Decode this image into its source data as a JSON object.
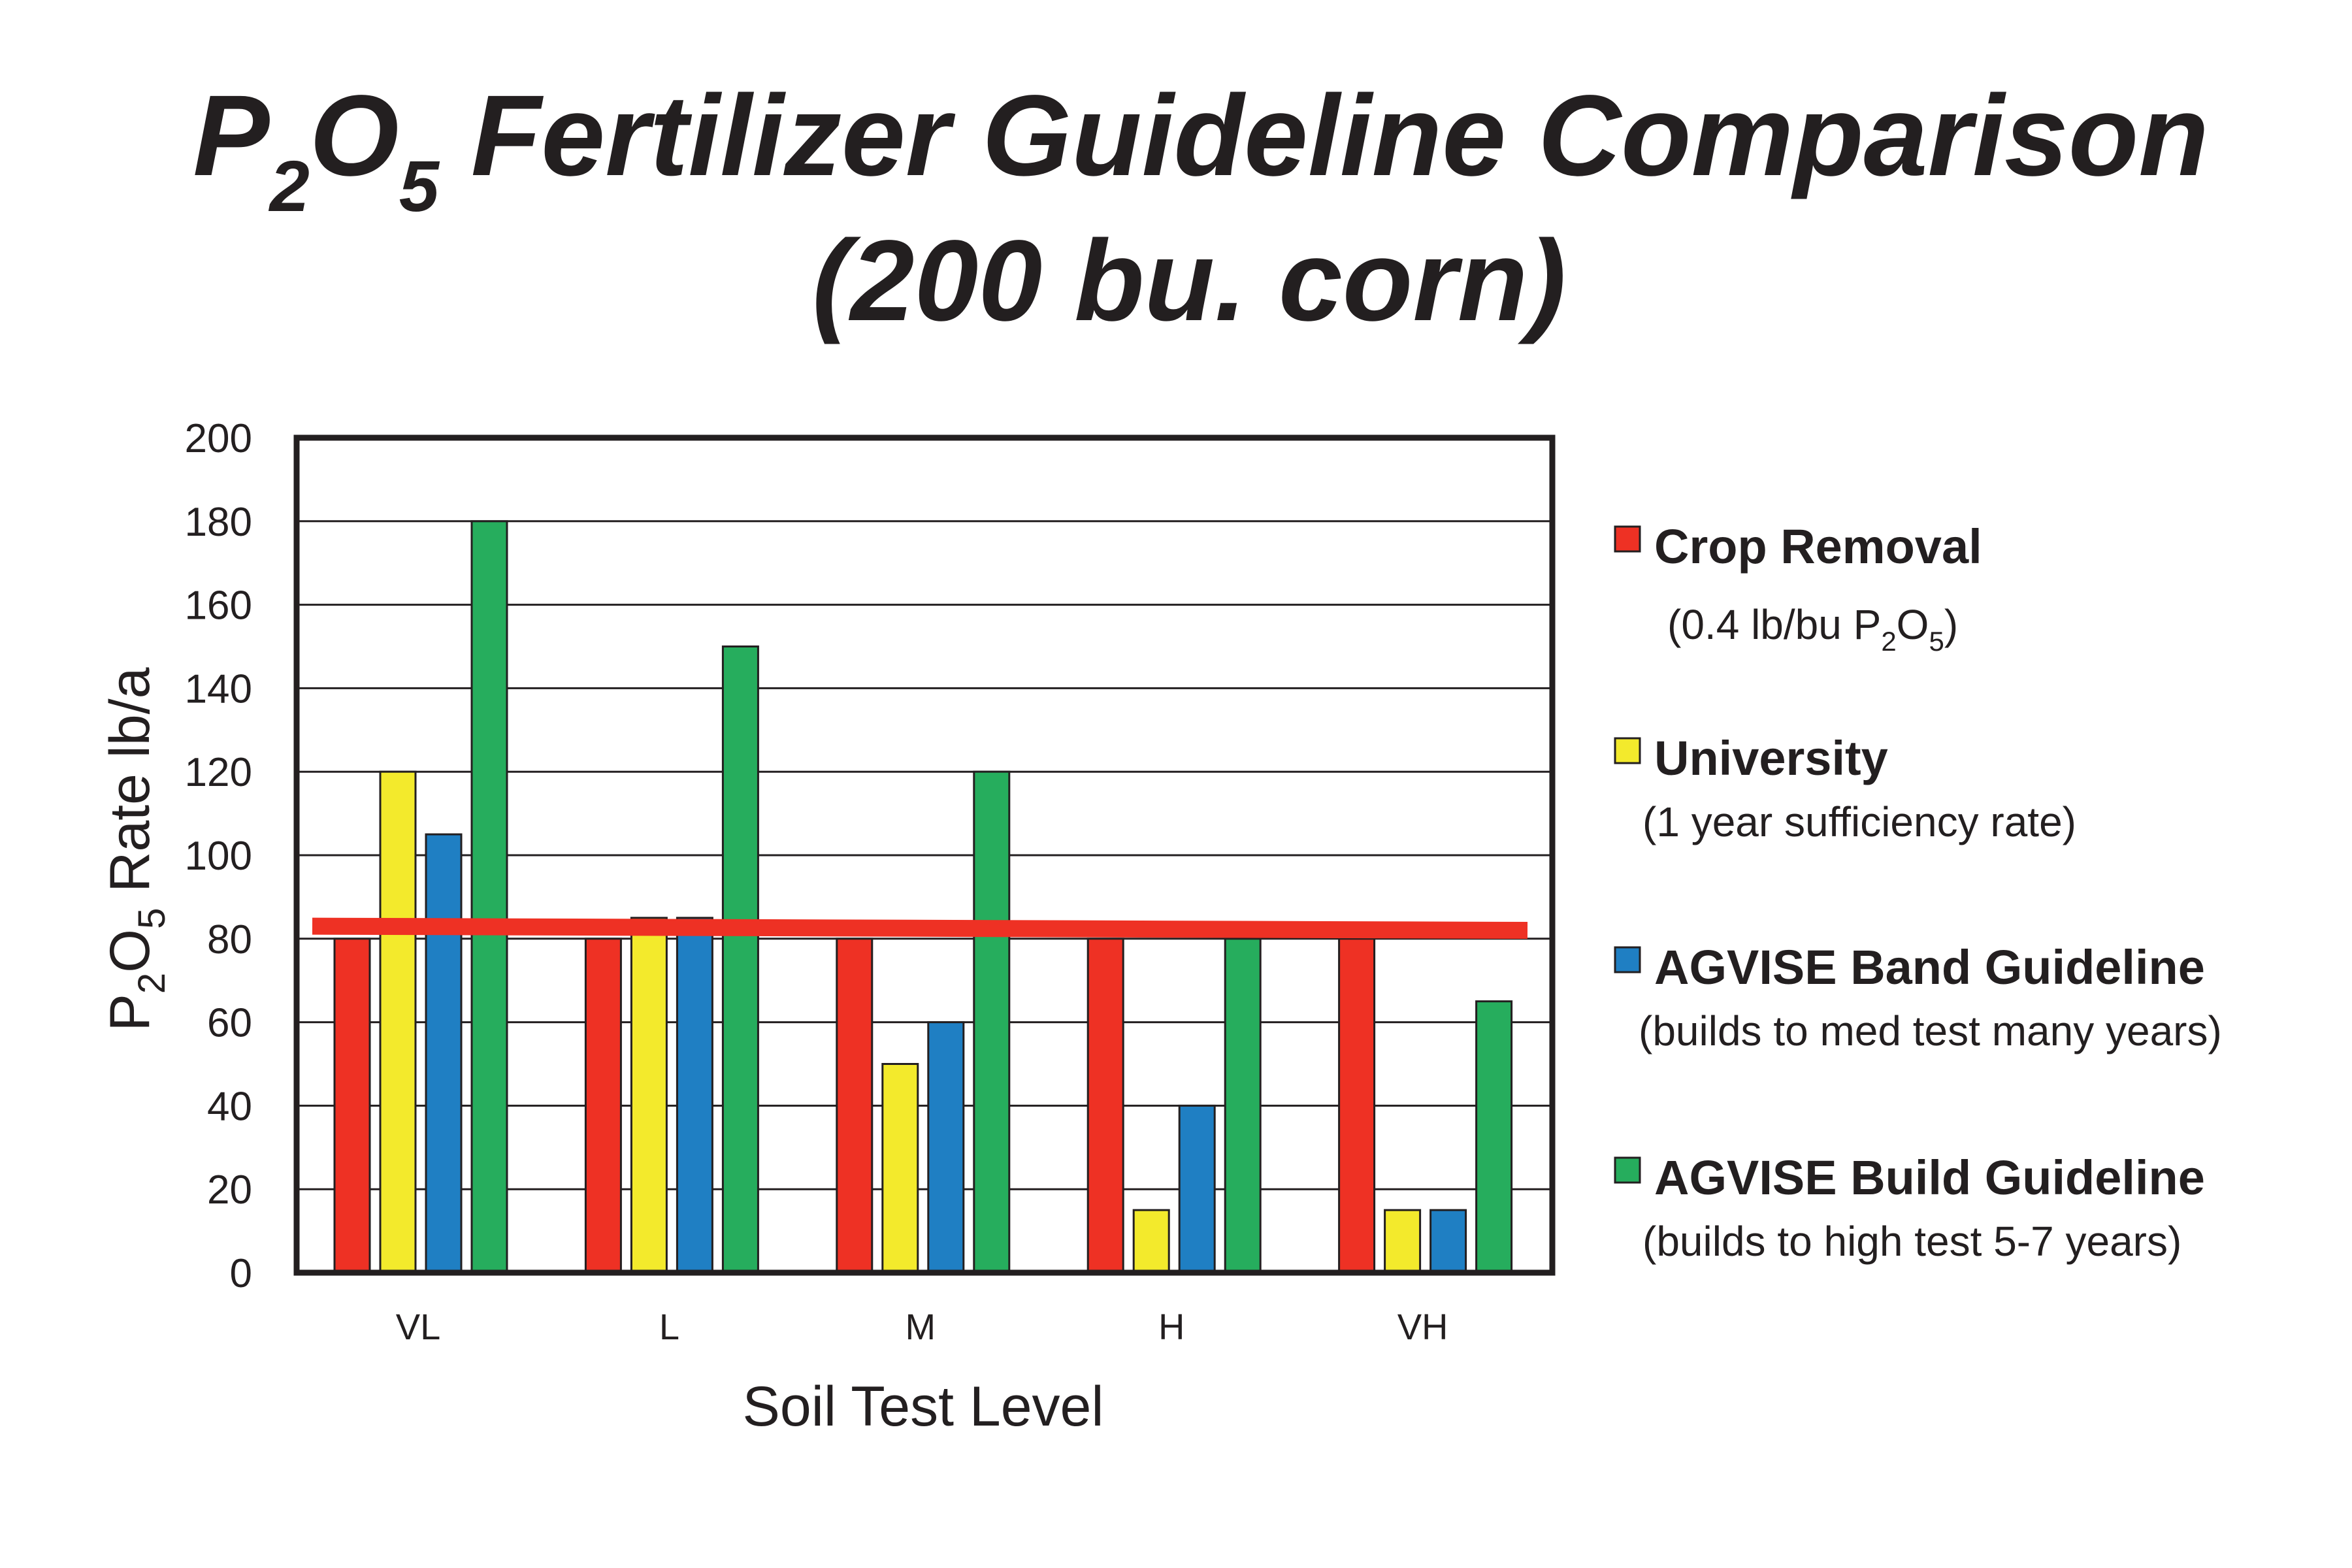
{
  "title": {
    "line1_p": "P",
    "line1_sub2": "2",
    "line1_o": "O",
    "line1_sub5": "5",
    "line1_rest": " Fertilizer Guideline Comparison",
    "line2": "(200 bu. corn)"
  },
  "colors": {
    "crop_removal": "#ee3124",
    "university": "#f3ea2c",
    "band": "#1f7fc3",
    "build": "#26ad5d",
    "reference_line": "#ee3124",
    "text": "#231f20"
  },
  "chart_data": {
    "type": "bar",
    "categories": [
      "VL",
      "L",
      "M",
      "H",
      "VH"
    ],
    "series": [
      {
        "name": "Crop Removal",
        "values": [
          80,
          80,
          80,
          80,
          80
        ]
      },
      {
        "name": "University",
        "values": [
          120,
          85,
          50,
          15,
          15
        ]
      },
      {
        "name": "AGVISE Band Guideline",
        "values": [
          105,
          85,
          60,
          40,
          15
        ]
      },
      {
        "name": "AGVISE Build Guideline",
        "values": [
          180,
          150,
          120,
          80,
          65
        ]
      }
    ],
    "reference_line": {
      "y_start": 83,
      "y_end": 82
    },
    "xlabel": "Soil Test Level",
    "ylabel": {
      "p": "P",
      "sub2": "2",
      "o": "O",
      "sub5": "5",
      "rest": " Rate  lb/a"
    },
    "ylim": [
      0,
      200
    ],
    "yticks": [
      0,
      20,
      40,
      60,
      80,
      100,
      120,
      140,
      160,
      180,
      200
    ],
    "grid": true,
    "legend_position": "right",
    "legend": [
      {
        "name": "Crop Removal",
        "desc_prefix": "(0.4 lb/bu P",
        "desc_sub2": "2",
        "desc_o": "O",
        "desc_sub5": "5",
        "desc_suffix": ")"
      },
      {
        "name": "University",
        "desc": "(1 year sufficiency rate)"
      },
      {
        "name": "AGVISE Band Guideline",
        "desc": "(builds to med test many years)"
      },
      {
        "name": "AGVISE Build Guideline",
        "desc": "(builds to high test 5-7 years)"
      }
    ]
  }
}
